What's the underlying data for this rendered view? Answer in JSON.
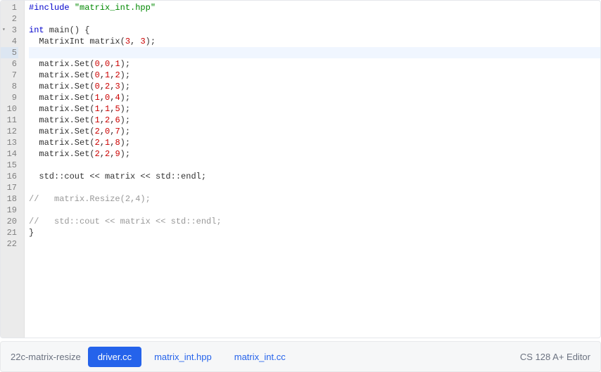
{
  "code": {
    "lines": [
      {
        "n": 1,
        "html": "<span class='kw'>#include</span> <span class='str'>\"matrix_int.hpp\"</span>"
      },
      {
        "n": 2,
        "html": ""
      },
      {
        "n": 3,
        "html": "<span class='kw'>int</span> main() {",
        "fold": true
      },
      {
        "n": 4,
        "html": "  MatrixInt matrix(<span class='num'>3</span>, <span class='num'>3</span>);"
      },
      {
        "n": 5,
        "html": "  ",
        "active": true
      },
      {
        "n": 6,
        "html": "  matrix.Set(<span class='num'>0</span>,<span class='num'>0</span>,<span class='num'>1</span>);"
      },
      {
        "n": 7,
        "html": "  matrix.Set(<span class='num'>0</span>,<span class='num'>1</span>,<span class='num'>2</span>);"
      },
      {
        "n": 8,
        "html": "  matrix.Set(<span class='num'>0</span>,<span class='num'>2</span>,<span class='num'>3</span>);"
      },
      {
        "n": 9,
        "html": "  matrix.Set(<span class='num'>1</span>,<span class='num'>0</span>,<span class='num'>4</span>);"
      },
      {
        "n": 10,
        "html": "  matrix.Set(<span class='num'>1</span>,<span class='num'>1</span>,<span class='num'>5</span>);"
      },
      {
        "n": 11,
        "html": "  matrix.Set(<span class='num'>1</span>,<span class='num'>2</span>,<span class='num'>6</span>);"
      },
      {
        "n": 12,
        "html": "  matrix.Set(<span class='num'>2</span>,<span class='num'>0</span>,<span class='num'>7</span>);"
      },
      {
        "n": 13,
        "html": "  matrix.Set(<span class='num'>2</span>,<span class='num'>1</span>,<span class='num'>8</span>);"
      },
      {
        "n": 14,
        "html": "  matrix.Set(<span class='num'>2</span>,<span class='num'>2</span>,<span class='num'>9</span>);"
      },
      {
        "n": 15,
        "html": ""
      },
      {
        "n": 16,
        "html": "  std::cout &lt;&lt; matrix &lt;&lt; std::endl;"
      },
      {
        "n": 17,
        "html": ""
      },
      {
        "n": 18,
        "html": "<span class='cmt'>//   matrix.Resize(2,4);</span>"
      },
      {
        "n": 19,
        "html": ""
      },
      {
        "n": 20,
        "html": "<span class='cmt'>//   std::cout &lt;&lt; matrix &lt;&lt; std::endl;</span>"
      },
      {
        "n": 21,
        "html": "}"
      },
      {
        "n": 22,
        "html": ""
      }
    ]
  },
  "bottom": {
    "project": "22c-matrix-resize",
    "tabs": [
      {
        "label": "driver.cc",
        "active": true
      },
      {
        "label": "matrix_int.hpp",
        "active": false
      },
      {
        "label": "matrix_int.cc",
        "active": false
      }
    ],
    "brand": "CS 128 A+ Editor"
  }
}
